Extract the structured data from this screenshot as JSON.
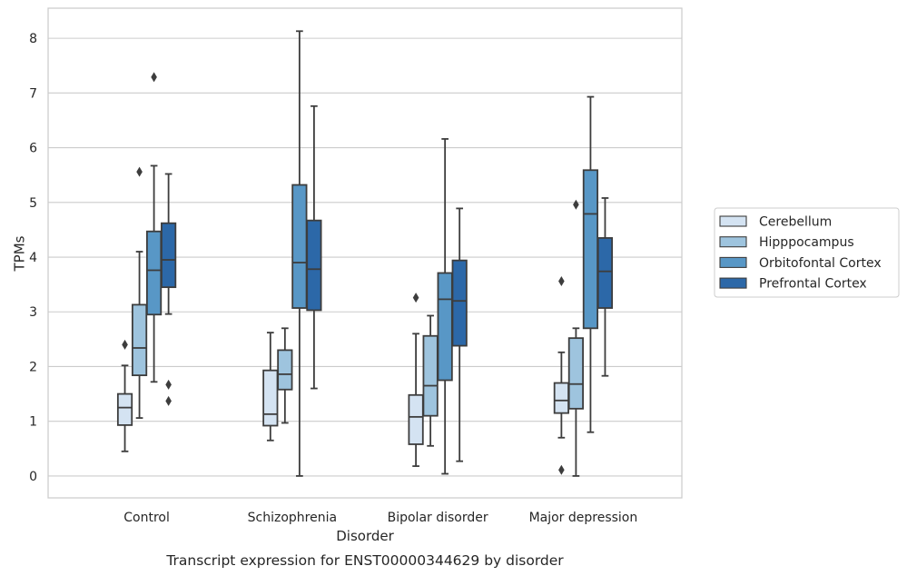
{
  "chart_data": {
    "type": "box",
    "title": "Transcript expression for ENST00000344629 by disorder",
    "xlabel": "Disorder",
    "ylabel": "TPMs",
    "ylim": [
      -0.4,
      8.55
    ],
    "yticks": [
      0,
      1,
      2,
      3,
      4,
      5,
      6,
      7,
      8
    ],
    "grid": true,
    "legend_position": "right",
    "categories": [
      "Control",
      "Schizophrenia",
      "Bipolar disorder",
      "Major depression"
    ],
    "series": [
      {
        "name": "Cerebellum",
        "color": "#d4e3f2",
        "boxes": [
          {
            "whislo": 0.45,
            "q1": 0.93,
            "med": 1.25,
            "q3": 1.5,
            "whishi": 2.02,
            "fliers": [
              2.4
            ]
          },
          {
            "whislo": 0.65,
            "q1": 0.92,
            "med": 1.13,
            "q3": 1.93,
            "whishi": 2.62,
            "fliers": []
          },
          {
            "whislo": 0.18,
            "q1": 0.58,
            "med": 1.08,
            "q3": 1.48,
            "whishi": 2.6,
            "fliers": [
              3.26
            ]
          },
          {
            "whislo": 0.7,
            "q1": 1.15,
            "med": 1.38,
            "q3": 1.7,
            "whishi": 2.26,
            "fliers": [
              3.56,
              0.11
            ]
          }
        ]
      },
      {
        "name": "Hipppocampus",
        "color": "#9ec4de",
        "boxes": [
          {
            "whislo": 1.06,
            "q1": 1.84,
            "med": 2.34,
            "q3": 3.13,
            "whishi": 4.1,
            "fliers": [
              5.56
            ]
          },
          {
            "whislo": 0.97,
            "q1": 1.58,
            "med": 1.86,
            "q3": 2.3,
            "whishi": 2.7,
            "fliers": []
          },
          {
            "whislo": 0.55,
            "q1": 1.1,
            "med": 1.65,
            "q3": 2.56,
            "whishi": 2.93,
            "fliers": []
          },
          {
            "whislo": 0.0,
            "q1": 1.23,
            "med": 1.68,
            "q3": 2.52,
            "whishi": 2.7,
            "fliers": [
              4.96
            ]
          }
        ]
      },
      {
        "name": "Orbitofontal Cortex",
        "color": "#5897c6",
        "boxes": [
          {
            "whislo": 1.72,
            "q1": 2.95,
            "med": 3.76,
            "q3": 4.47,
            "whishi": 5.67,
            "fliers": [
              7.29
            ]
          },
          {
            "whislo": 0.0,
            "q1": 3.07,
            "med": 3.9,
            "q3": 5.32,
            "whishi": 8.13,
            "fliers": []
          },
          {
            "whislo": 0.04,
            "q1": 1.75,
            "med": 3.23,
            "q3": 3.71,
            "whishi": 6.16,
            "fliers": []
          },
          {
            "whislo": 0.8,
            "q1": 2.7,
            "med": 4.79,
            "q3": 5.59,
            "whishi": 6.93,
            "fliers": []
          }
        ]
      },
      {
        "name": "Prefrontal Cortex",
        "color": "#2c68a8",
        "boxes": [
          {
            "whislo": 2.96,
            "q1": 3.45,
            "med": 3.95,
            "q3": 4.62,
            "whishi": 5.52,
            "fliers": [
              1.67,
              1.37
            ]
          },
          {
            "whislo": 1.6,
            "q1": 3.03,
            "med": 3.78,
            "q3": 4.67,
            "whishi": 6.76,
            "fliers": []
          },
          {
            "whislo": 0.27,
            "q1": 2.38,
            "med": 3.2,
            "q3": 3.94,
            "whishi": 4.89,
            "fliers": []
          },
          {
            "whislo": 1.83,
            "q1": 3.07,
            "med": 3.74,
            "q3": 4.35,
            "whishi": 5.08,
            "fliers": []
          }
        ]
      }
    ]
  }
}
